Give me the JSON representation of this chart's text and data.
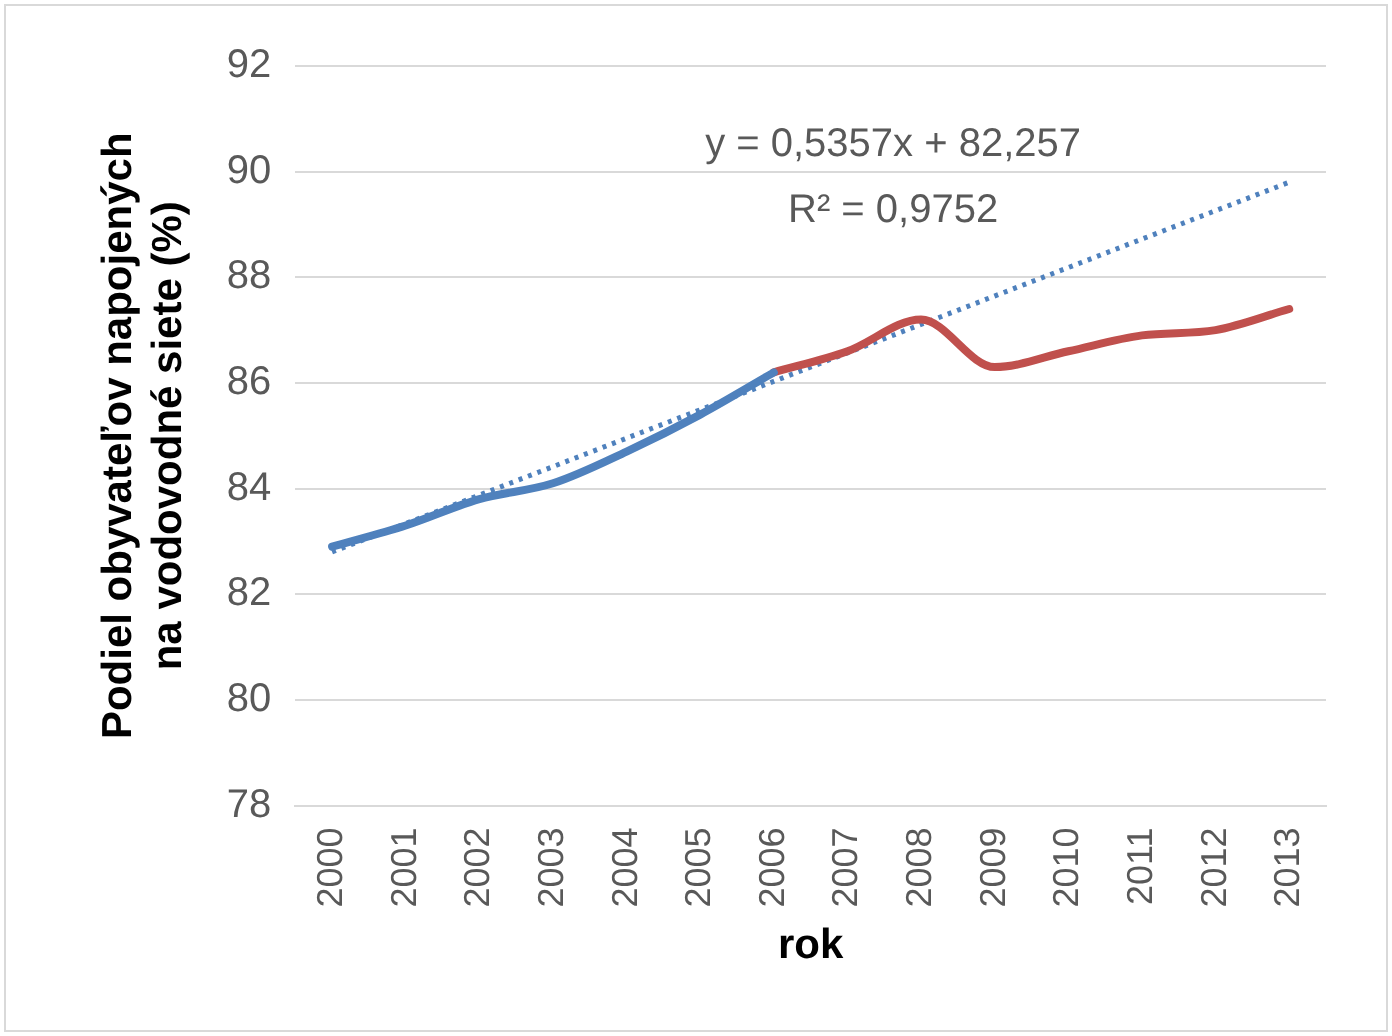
{
  "chart_data": {
    "type": "line",
    "xlabel": "rok",
    "ylabel": "Podiel obyvateľov napojených na vodovodné siete (%)",
    "categories": [
      "2000",
      "2001",
      "2002",
      "2003",
      "2004",
      "2005",
      "2006",
      "2007",
      "2008",
      "2009",
      "2010",
      "2011",
      "2012",
      "2013"
    ],
    "series": [
      {
        "color": "#4f81bd",
        "values": [
          82.9,
          83.3,
          83.8,
          84.1,
          84.7,
          85.4,
          86.2,
          null,
          null,
          null,
          null,
          null,
          null,
          null
        ]
      },
      {
        "color": "#c0504d",
        "values": [
          null,
          null,
          null,
          null,
          null,
          null,
          86.2,
          86.6,
          87.2,
          86.3,
          86.6,
          86.9,
          87.0,
          87.4
        ]
      },
      {
        "type": "line",
        "color": "#4f81bd",
        "line_style": "dotted",
        "values": [
          82.8,
          null,
          null,
          null,
          null,
          null,
          null,
          null,
          null,
          null,
          null,
          null,
          null,
          89.8
        ]
      }
    ],
    "ylim": [
      78,
      92
    ],
    "yticks": [
      78,
      80,
      82,
      84,
      86,
      88,
      90,
      92
    ],
    "grid": "y",
    "legend": false,
    "marker": "none",
    "annotations": [
      "y = 0,5357x + 82,257",
      "R² = 0,9752"
    ]
  }
}
